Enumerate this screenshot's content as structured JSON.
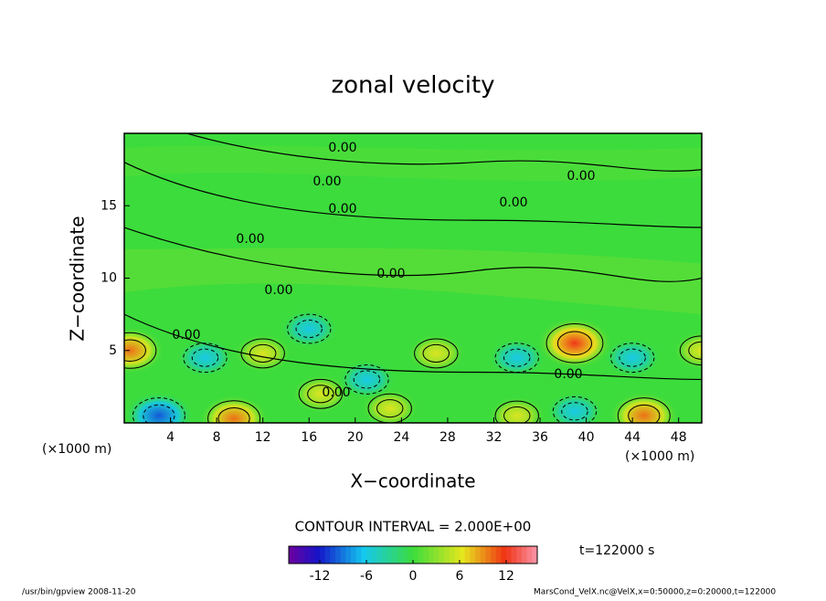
{
  "chart_data": {
    "type": "contour",
    "title": "zonal velocity",
    "x_label": "X−coordinate",
    "y_label": "Z−coordinate",
    "x_unit_left": "(×1000 m)",
    "x_unit_right": "(×1000 m)",
    "xlim": [
      0,
      50
    ],
    "ylim": [
      0,
      20
    ],
    "xticks": [
      4,
      8,
      12,
      16,
      20,
      24,
      28,
      32,
      36,
      40,
      44,
      48
    ],
    "yticks": [
      5,
      10,
      15
    ],
    "x": [
      0.5,
      39,
      9.5,
      45,
      34,
      23,
      17,
      12,
      27,
      50,
      16,
      3,
      39,
      34,
      44,
      7,
      21
    ],
    "y": [
      5,
      5.5,
      0.3,
      0.5,
      0.5,
      1,
      2,
      4.8,
      4.8,
      5,
      6.5,
      0.5,
      0.8,
      4.5,
      4.5,
      4.5,
      3
    ],
    "values": [
      10,
      12,
      10,
      10,
      6,
      6,
      6,
      6,
      6,
      6,
      -6,
      -10,
      -6,
      -6,
      -6,
      -6,
      -6
    ],
    "contour_labels": [
      "0.00",
      "0.00",
      "0.00",
      "0.00",
      "0.00",
      "0.00",
      "0.00",
      "0.00",
      "0.00",
      "0.00",
      "0.00"
    ],
    "contour_interval": "CONTOUR INTERVAL = 2.000E+00",
    "time_label": "t=122000 s",
    "colorbar_lim": [
      -16,
      16
    ],
    "colorbar_ticks": [
      -12,
      -6,
      0,
      6,
      12
    ],
    "footer_left": "/usr/bin/gpview  2008-11-20",
    "footer_right": "MarsCond_VelX.nc@VelX,x=0:50000,z=0:20000,t=122000"
  }
}
